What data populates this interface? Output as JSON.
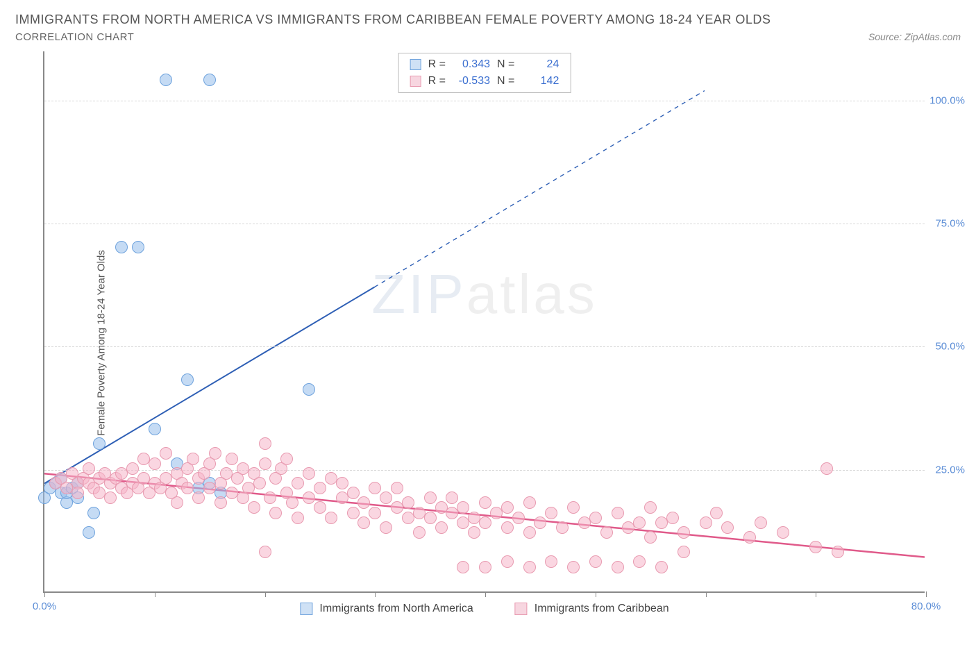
{
  "title": "IMMIGRANTS FROM NORTH AMERICA VS IMMIGRANTS FROM CARIBBEAN FEMALE POVERTY AMONG 18-24 YEAR OLDS",
  "subtitle": "CORRELATION CHART",
  "source": "Source: ZipAtlas.com",
  "y_axis_label": "Female Poverty Among 18-24 Year Olds",
  "watermark_a": "ZIP",
  "watermark_b": "atlas",
  "chart": {
    "type": "scatter",
    "xlim": [
      0,
      80
    ],
    "ylim": [
      0,
      110
    ],
    "y_ticks": [
      25,
      50,
      75,
      100
    ],
    "y_tick_labels": [
      "25.0%",
      "50.0%",
      "75.0%",
      "100.0%"
    ],
    "x_ticks": [
      0,
      10,
      20,
      30,
      40,
      50,
      60,
      70,
      80
    ],
    "x_tick_labels": {
      "0": "0.0%",
      "80": "80.0%"
    },
    "grid_color": "#d8d8d8",
    "axis_color": "#888888",
    "background_color": "#ffffff",
    "tick_label_color": "#5b8dd6",
    "point_radius": 9,
    "series": [
      {
        "name": "Immigrants from North America",
        "marker_fill": "rgba(150,190,235,0.55)",
        "marker_stroke": "#6fa3dd",
        "swatch_fill": "#cfe1f5",
        "swatch_stroke": "#6fa3dd",
        "stats": {
          "R": "0.343",
          "N": "24"
        },
        "trend": {
          "x1": 0,
          "y1": 22,
          "x2_solid": 30,
          "y2_solid": 62,
          "x2_dash": 60,
          "y2_dash": 102,
          "color": "#2e5fb5",
          "width": 2
        },
        "points": [
          [
            0,
            19
          ],
          [
            0.5,
            21
          ],
          [
            1,
            22
          ],
          [
            1.5,
            20
          ],
          [
            1.5,
            23
          ],
          [
            2,
            18
          ],
          [
            2,
            20
          ],
          [
            2.5,
            21
          ],
          [
            3,
            22
          ],
          [
            3,
            19
          ],
          [
            4,
            12
          ],
          [
            4.5,
            16
          ],
          [
            5,
            30
          ],
          [
            7,
            70
          ],
          [
            8.5,
            70
          ],
          [
            11,
            104
          ],
          [
            15,
            104
          ],
          [
            10,
            33
          ],
          [
            12,
            26
          ],
          [
            14,
            21
          ],
          [
            15,
            22
          ],
          [
            16,
            20
          ],
          [
            24,
            41
          ],
          [
            13,
            43
          ]
        ]
      },
      {
        "name": "Immigrants from Caribbean",
        "marker_fill": "rgba(245,180,200,0.55)",
        "marker_stroke": "#e89ab0",
        "swatch_fill": "#f7d6e0",
        "swatch_stroke": "#e89ab0",
        "stats": {
          "R": "-0.533",
          "N": "142"
        },
        "trend": {
          "x1": 0,
          "y1": 24,
          "x2_solid": 80,
          "y2_solid": 7,
          "color": "#e05a8a",
          "width": 2.5
        },
        "points": [
          [
            1,
            22
          ],
          [
            1.5,
            23
          ],
          [
            2,
            21
          ],
          [
            2.5,
            24
          ],
          [
            3,
            22
          ],
          [
            3,
            20
          ],
          [
            3.5,
            23
          ],
          [
            4,
            22
          ],
          [
            4,
            25
          ],
          [
            4.5,
            21
          ],
          [
            5,
            23
          ],
          [
            5,
            20
          ],
          [
            5.5,
            24
          ],
          [
            6,
            22
          ],
          [
            6,
            19
          ],
          [
            6.5,
            23
          ],
          [
            7,
            21
          ],
          [
            7,
            24
          ],
          [
            7.5,
            20
          ],
          [
            8,
            22
          ],
          [
            8,
            25
          ],
          [
            8.5,
            21
          ],
          [
            9,
            23
          ],
          [
            9,
            27
          ],
          [
            9.5,
            20
          ],
          [
            10,
            22
          ],
          [
            10,
            26
          ],
          [
            10.5,
            21
          ],
          [
            11,
            23
          ],
          [
            11,
            28
          ],
          [
            11.5,
            20
          ],
          [
            12,
            24
          ],
          [
            12,
            18
          ],
          [
            12.5,
            22
          ],
          [
            13,
            25
          ],
          [
            13,
            21
          ],
          [
            13.5,
            27
          ],
          [
            14,
            23
          ],
          [
            14,
            19
          ],
          [
            14.5,
            24
          ],
          [
            15,
            21
          ],
          [
            15,
            26
          ],
          [
            15.5,
            28
          ],
          [
            16,
            22
          ],
          [
            16,
            18
          ],
          [
            16.5,
            24
          ],
          [
            17,
            20
          ],
          [
            17,
            27
          ],
          [
            17.5,
            23
          ],
          [
            18,
            25
          ],
          [
            18,
            19
          ],
          [
            18.5,
            21
          ],
          [
            19,
            24
          ],
          [
            19,
            17
          ],
          [
            19.5,
            22
          ],
          [
            20,
            26
          ],
          [
            20,
            30
          ],
          [
            20.5,
            19
          ],
          [
            21,
            23
          ],
          [
            21,
            16
          ],
          [
            21.5,
            25
          ],
          [
            22,
            20
          ],
          [
            22,
            27
          ],
          [
            22.5,
            18
          ],
          [
            23,
            22
          ],
          [
            23,
            15
          ],
          [
            24,
            24
          ],
          [
            24,
            19
          ],
          [
            25,
            21
          ],
          [
            25,
            17
          ],
          [
            26,
            23
          ],
          [
            26,
            15
          ],
          [
            27,
            19
          ],
          [
            27,
            22
          ],
          [
            28,
            16
          ],
          [
            28,
            20
          ],
          [
            29,
            18
          ],
          [
            29,
            14
          ],
          [
            30,
            21
          ],
          [
            30,
            16
          ],
          [
            31,
            19
          ],
          [
            31,
            13
          ],
          [
            32,
            17
          ],
          [
            32,
            21
          ],
          [
            33,
            15
          ],
          [
            33,
            18
          ],
          [
            34,
            16
          ],
          [
            34,
            12
          ],
          [
            35,
            19
          ],
          [
            35,
            15
          ],
          [
            36,
            17
          ],
          [
            36,
            13
          ],
          [
            37,
            16
          ],
          [
            37,
            19
          ],
          [
            38,
            14
          ],
          [
            38,
            17
          ],
          [
            39,
            15
          ],
          [
            39,
            12
          ],
          [
            40,
            18
          ],
          [
            40,
            14
          ],
          [
            41,
            16
          ],
          [
            42,
            13
          ],
          [
            42,
            17
          ],
          [
            43,
            15
          ],
          [
            44,
            12
          ],
          [
            44,
            18
          ],
          [
            45,
            14
          ],
          [
            46,
            16
          ],
          [
            47,
            13
          ],
          [
            48,
            17
          ],
          [
            49,
            14
          ],
          [
            50,
            15
          ],
          [
            51,
            12
          ],
          [
            52,
            16
          ],
          [
            53,
            13
          ],
          [
            54,
            14
          ],
          [
            55,
            17
          ],
          [
            55,
            11
          ],
          [
            56,
            14
          ],
          [
            57,
            15
          ],
          [
            58,
            12
          ],
          [
            60,
            14
          ],
          [
            61,
            16
          ],
          [
            62,
            13
          ],
          [
            64,
            11
          ],
          [
            65,
            14
          ],
          [
            67,
            12
          ],
          [
            70,
            9
          ],
          [
            72,
            8
          ],
          [
            71,
            25
          ],
          [
            38,
            5
          ],
          [
            40,
            5
          ],
          [
            42,
            6
          ],
          [
            44,
            5
          ],
          [
            46,
            6
          ],
          [
            48,
            5
          ],
          [
            50,
            6
          ],
          [
            52,
            5
          ],
          [
            54,
            6
          ],
          [
            56,
            5
          ],
          [
            20,
            8
          ],
          [
            58,
            8
          ]
        ]
      }
    ]
  },
  "stats_labels": {
    "R": "R =",
    "N": "N ="
  }
}
